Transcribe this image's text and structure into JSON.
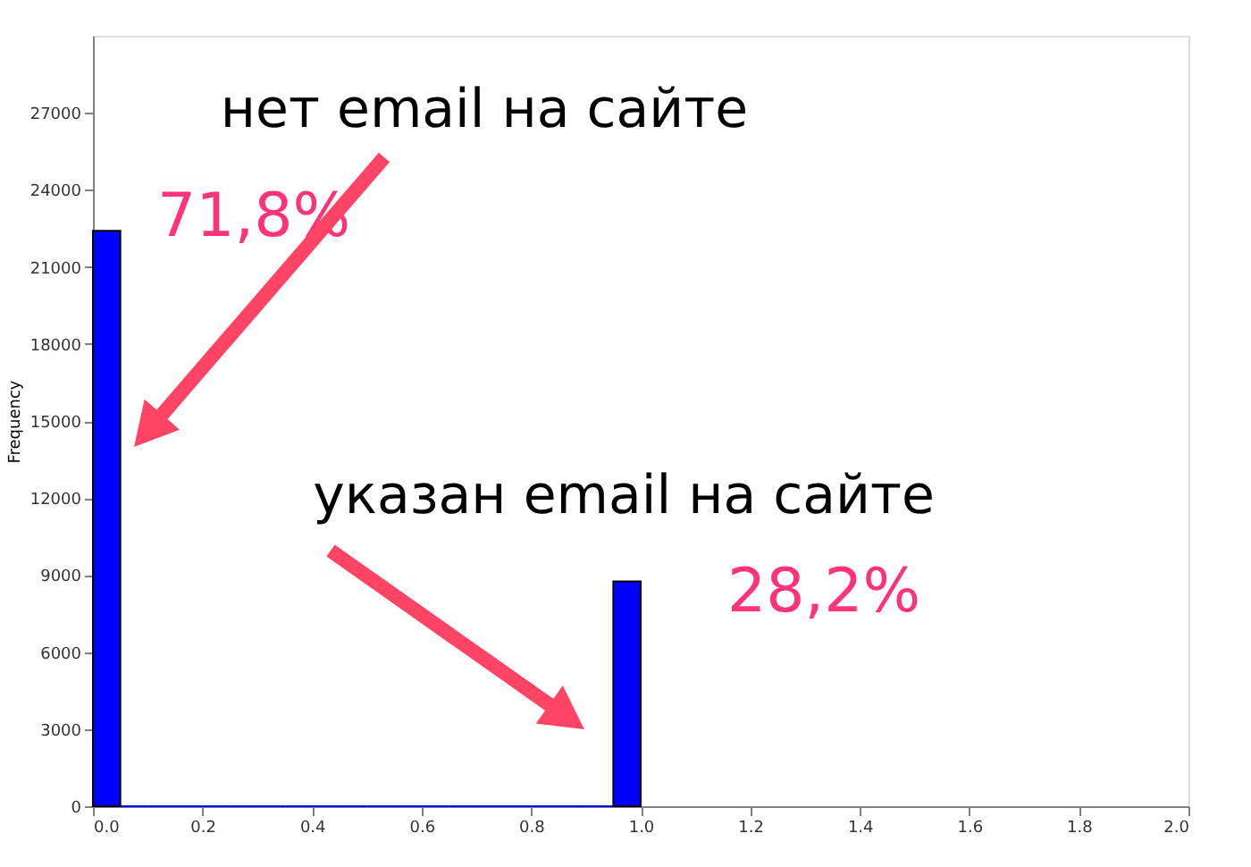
{
  "chart_data": {
    "type": "histogram",
    "bins": [
      0.0,
      0.05,
      0.1,
      0.15,
      0.2,
      0.25,
      0.3,
      0.35,
      0.4,
      0.45,
      0.5,
      0.55,
      0.6,
      0.65,
      0.7,
      0.75,
      0.8,
      0.85,
      0.9,
      0.95,
      1.0
    ],
    "values": [
      22400,
      0,
      0,
      0,
      0,
      0,
      0,
      0,
      0,
      0,
      0,
      0,
      0,
      0,
      0,
      0,
      0,
      0,
      0,
      8750
    ],
    "color": "#0000ff",
    "ylabel": "Frequency",
    "xlim": [
      0.0,
      2.0
    ],
    "xticks": [
      {
        "value": 0,
        "label": "0.0"
      },
      0.2,
      0.4,
      0.6,
      0.8,
      {
        "value": 1,
        "label": "1.0"
      },
      1.2,
      1.4,
      1.6,
      1.8,
      {
        "value": 2,
        "label": "2.0"
      }
    ],
    "ylim": [
      0,
      30000
    ],
    "yticks": [
      0,
      3000,
      6000,
      9000,
      12000,
      15000,
      18000,
      21000,
      24000,
      27000
    ],
    "grid": false,
    "annotations": [
      "нет email на сайте",
      "71,8%",
      "указан email на сайте",
      "28,2%"
    ]
  }
}
